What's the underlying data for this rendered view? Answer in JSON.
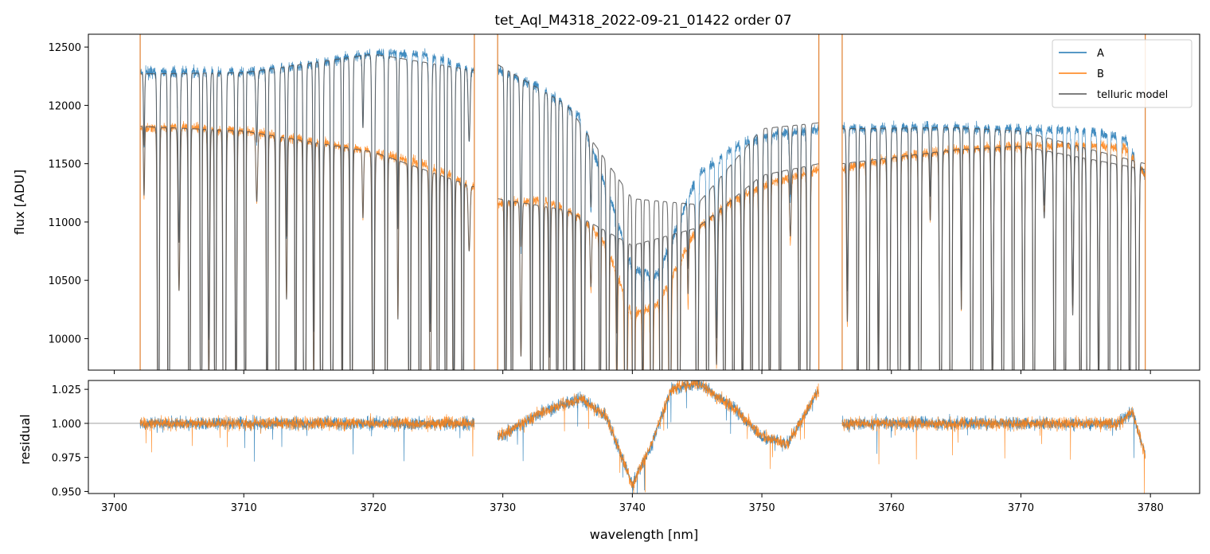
{
  "chart_data": [
    {
      "type": "line",
      "panel": "top",
      "title": "tet_Aql_M4318_2022-09-21_01422  order 07",
      "xlabel": "",
      "ylabel": "flux [ADU]",
      "xlim": [
        3698,
        3783.8
      ],
      "ylim": [
        9730,
        12610
      ],
      "grid": false,
      "legend_position": "top-right",
      "yticks": [
        10000,
        10500,
        11000,
        11500,
        12000,
        12500
      ],
      "ytick_labels": [
        "10000",
        "10500",
        "11000",
        "11500",
        "12000",
        "12500"
      ],
      "xticks": [
        3700,
        3710,
        3720,
        3730,
        3740,
        3750,
        3760,
        3770,
        3780
      ],
      "segments": [
        [
          3702.0,
          3727.8
        ],
        [
          3729.6,
          3754.4
        ],
        [
          3756.2,
          3779.6
        ]
      ],
      "absorption_lines": [
        3702.3,
        3703.4,
        3704.2,
        3705.0,
        3705.8,
        3706.7,
        3707.3,
        3707.8,
        3708.5,
        3709.4,
        3710.1,
        3711.0,
        3711.8,
        3712.6,
        3713.3,
        3714.0,
        3714.7,
        3715.4,
        3716.0,
        3716.8,
        3717.6,
        3718.3,
        3719.2,
        3720.0,
        3721.0,
        3721.9,
        3722.8,
        3723.6,
        3724.4,
        3725.0,
        3725.6,
        3726.2,
        3726.9,
        3727.4,
        3730.2,
        3730.7,
        3731.4,
        3732.2,
        3733.0,
        3733.6,
        3734.2,
        3734.8,
        3735.5,
        3736.2,
        3736.8,
        3737.5,
        3738.1,
        3738.8,
        3739.5,
        3740.1,
        3740.8,
        3741.5,
        3742.2,
        3742.9,
        3743.6,
        3744.3,
        3745.0,
        3745.8,
        3746.5,
        3747.1,
        3747.8,
        3748.5,
        3749.2,
        3749.9,
        3750.6,
        3751.4,
        3752.2,
        3752.9,
        3753.6,
        3756.6,
        3757.4,
        3758.2,
        3759.0,
        3759.8,
        3760.6,
        3761.4,
        3762.2,
        3763.0,
        3763.8,
        3764.6,
        3765.4,
        3766.2,
        3767.0,
        3767.8,
        3768.6,
        3769.4,
        3770.2,
        3771.0,
        3771.8,
        3772.6,
        3773.4,
        3774.0,
        3774.6,
        3775.2,
        3776.0,
        3776.8,
        3777.6,
        3778.4,
        3779.0
      ],
      "series": [
        {
          "name": "A",
          "color": "#1f77b4",
          "continuum_x": [
            3702.0,
            3705,
            3710,
            3715,
            3720,
            3724,
            3727.8,
            3729.6,
            3733,
            3736,
            3738,
            3740,
            3742,
            3745,
            3748,
            3751,
            3754.4,
            3756.2,
            3760,
            3765,
            3770,
            3775,
            3778,
            3779.6
          ],
          "continuum_y": [
            12280,
            12290,
            12280,
            12350,
            12450,
            12440,
            12300,
            12300,
            12150,
            11900,
            11300,
            10600,
            10550,
            11400,
            11650,
            11750,
            11800,
            11800,
            11810,
            11810,
            11800,
            11780,
            11720,
            11400
          ]
        },
        {
          "name": "B",
          "color": "#ff7f0e",
          "continuum_x": [
            3702.0,
            3705,
            3710,
            3715,
            3720,
            3724,
            3727.8,
            3729.6,
            3733,
            3736,
            3738,
            3740,
            3742,
            3745,
            3748,
            3751,
            3754.4,
            3756.2,
            3760,
            3765,
            3770,
            3775,
            3778,
            3779.6
          ],
          "continuum_y": [
            11800,
            11820,
            11780,
            11700,
            11600,
            11500,
            11300,
            11150,
            11200,
            11050,
            10800,
            10200,
            10300,
            10950,
            11200,
            11350,
            11450,
            11450,
            11550,
            11620,
            11650,
            11660,
            11640,
            11400
          ]
        },
        {
          "name": "telluric model",
          "color": "#555555",
          "continuum_x": [
            3702.0,
            3710,
            3720,
            3727.8,
            3729.6,
            3735,
            3740,
            3745,
            3750,
            3754.4,
            3756.2,
            3765,
            3770,
            3779.6
          ],
          "continuum_y": [
            12270,
            12280,
            12440,
            12300,
            12350,
            12000,
            11200,
            11150,
            11800,
            11850,
            11800,
            11810,
            11780,
            11500
          ],
          "continuum_y_B": [
            11820,
            11780,
            11600,
            11300,
            11200,
            11100,
            10800,
            10950,
            11400,
            11500,
            11500,
            11620,
            11650,
            11450
          ]
        }
      ],
      "vertical_lines": [
        3702.0,
        3727.8,
        3729.6,
        3754.4,
        3756.2,
        3779.6
      ]
    },
    {
      "type": "line",
      "panel": "bottom",
      "xlabel": "wavelength [nm]",
      "ylabel": "residual",
      "xlim": [
        3698,
        3783.8
      ],
      "ylim": [
        0.9485,
        1.0315
      ],
      "grid": false,
      "reference_line": 1.0,
      "yticks": [
        0.95,
        0.975,
        1.0,
        1.025
      ],
      "ytick_labels": [
        "0.950",
        "0.975",
        "1.000",
        "1.025"
      ],
      "xticks": [
        3700,
        3710,
        3720,
        3730,
        3740,
        3750,
        3760,
        3770,
        3780
      ],
      "xtick_labels": [
        "3700",
        "3710",
        "3720",
        "3730",
        "3740",
        "3750",
        "3760",
        "3770",
        "3780"
      ],
      "trend_x": [
        3729.6,
        3733,
        3736,
        3738,
        3740,
        3741.5,
        3743,
        3745,
        3748,
        3750,
        3752,
        3754.4
      ],
      "trend_y": [
        0.99,
        1.008,
        1.018,
        1.005,
        0.955,
        0.985,
        1.025,
        1.03,
        1.01,
        0.99,
        0.985,
        1.025
      ],
      "series": [
        {
          "name": "A",
          "color": "#1f77b4"
        },
        {
          "name": "B",
          "color": "#ff7f0e"
        }
      ]
    }
  ],
  "legend": {
    "items": [
      {
        "label": "A",
        "color": "#1f77b4"
      },
      {
        "label": "B",
        "color": "#ff7f0e"
      },
      {
        "label": "telluric model",
        "color": "#555555"
      }
    ]
  }
}
